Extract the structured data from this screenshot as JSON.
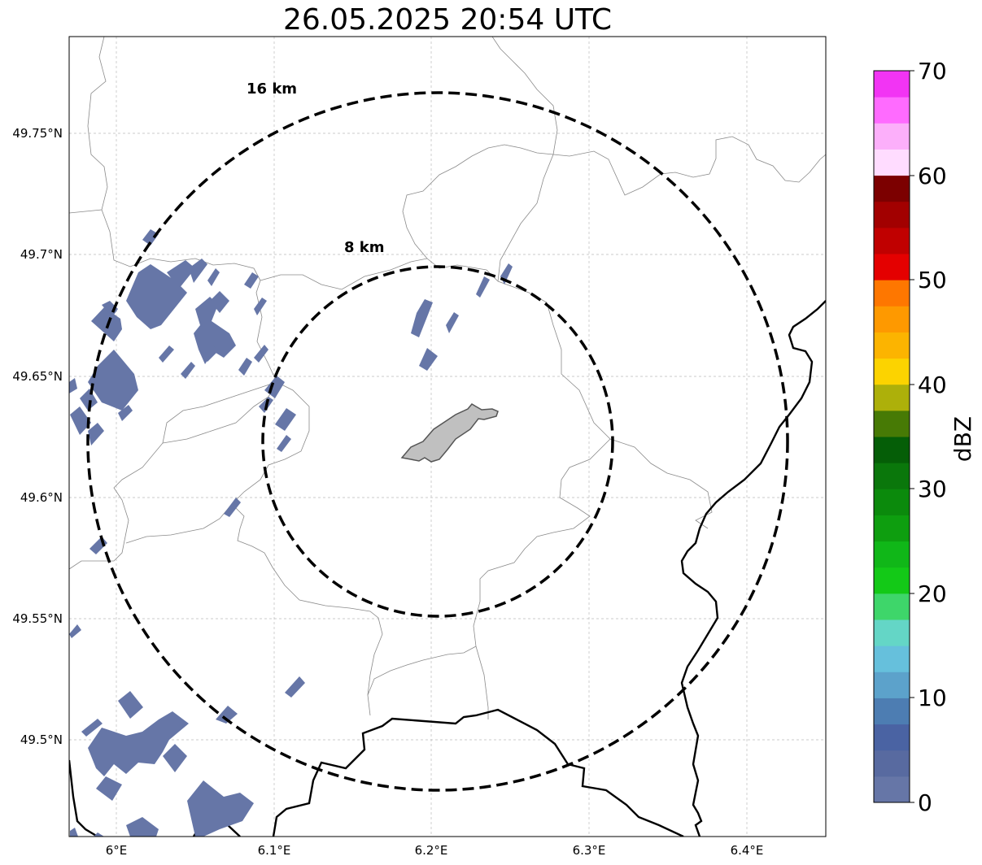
{
  "title": "26.05.2025 20:54 UTC",
  "map": {
    "lon_range": [
      5.97,
      6.45
    ],
    "lat_range": [
      49.46,
      49.79
    ],
    "lon_ticks": [
      {
        "value": 6.0,
        "label": "6°E"
      },
      {
        "value": 6.1,
        "label": "6.1°E"
      },
      {
        "value": 6.2,
        "label": "6.2°E"
      },
      {
        "value": 6.3,
        "label": "6.3°E"
      },
      {
        "value": 6.4,
        "label": "6.4°E"
      }
    ],
    "lat_ticks": [
      {
        "value": 49.75,
        "label": "49.75°N"
      },
      {
        "value": 49.7,
        "label": "49.7°N"
      },
      {
        "value": 49.65,
        "label": "49.65°N"
      },
      {
        "value": 49.6,
        "label": "49.6°N"
      },
      {
        "value": 49.55,
        "label": "49.55°N"
      },
      {
        "value": 49.5,
        "label": "49.5°N"
      }
    ],
    "gridlines": true,
    "range_rings": [
      {
        "label": "8 km",
        "radius_km": 8
      },
      {
        "label": "16 km",
        "radius_km": 16
      }
    ],
    "center": {
      "lon": 6.2,
      "lat": 49.623
    }
  },
  "colorbar": {
    "label": "dBZ",
    "range": [
      0,
      70
    ],
    "tick_labels": [
      "0",
      "10",
      "20",
      "30",
      "40",
      "50",
      "60",
      "70"
    ],
    "colors": [
      "#6676a7",
      "#586aa0",
      "#4a63a3",
      "#4d7db2",
      "#5ca2cb",
      "#66c0dc",
      "#64d6c6",
      "#3ed66a",
      "#13c917",
      "#10b718",
      "#0e9e0f",
      "#0b8a0c",
      "#0a770b",
      "#055e07",
      "#477a05",
      "#adb00a",
      "#fcd300",
      "#fcb400",
      "#fe9900",
      "#fe7700",
      "#e40000",
      "#c00000",
      "#a20000",
      "#7c0000",
      "#ffdcff",
      "#fcaffa",
      "#ff6bff",
      "#f234f4"
    ]
  },
  "colors": {
    "echo": "#6676a7",
    "city": "#c0c0c0",
    "border": "#000000",
    "admin_line": "#8a8a8a",
    "ring": "#000000"
  }
}
